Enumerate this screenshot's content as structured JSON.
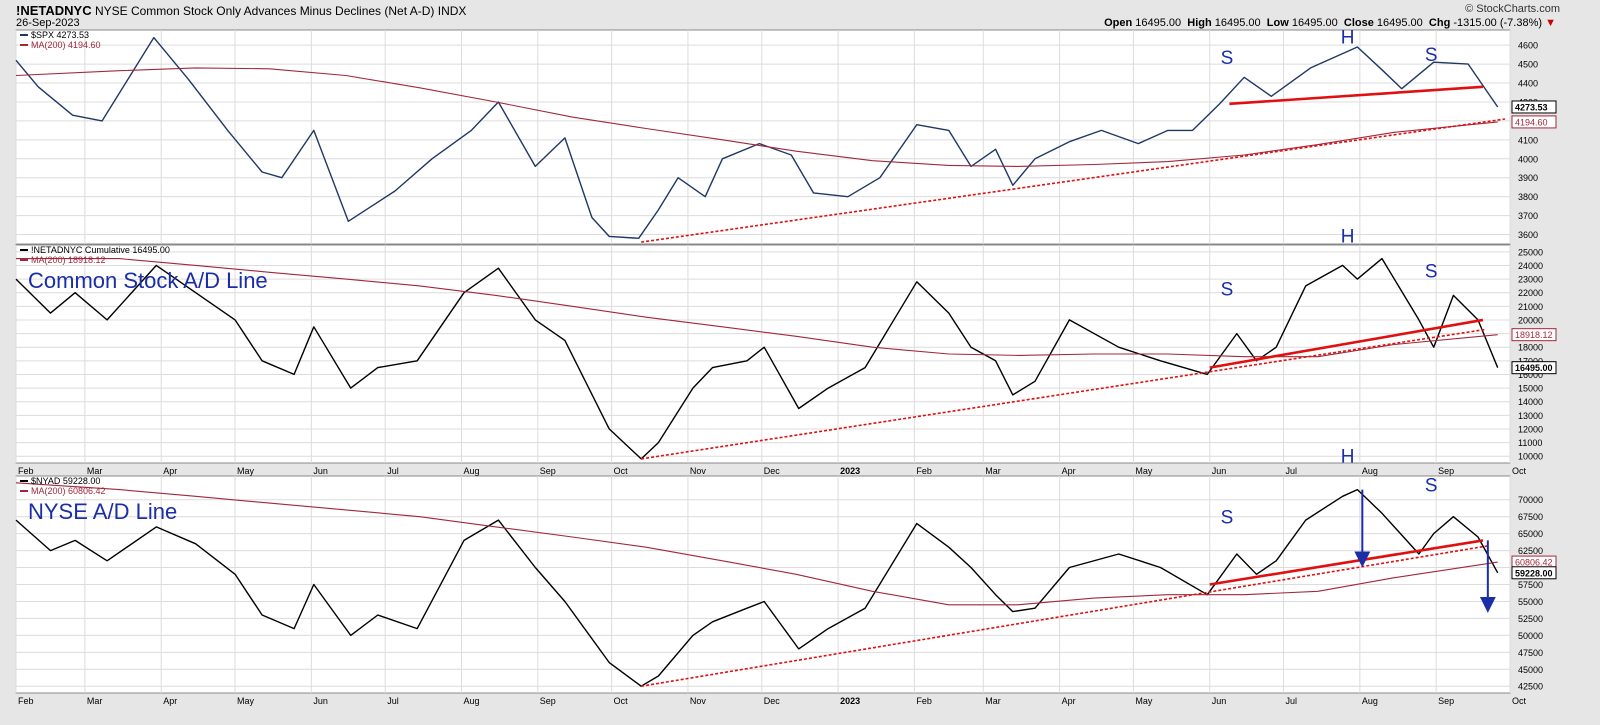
{
  "header": {
    "symbol": "!NETADNYC",
    "description": "NYSE Common Stock Only Advances Minus Declines (Net A-D)",
    "exchange": "INDX",
    "date": "26-Sep-2023",
    "site": "© StockCharts.com",
    "open_label": "Open",
    "open_value": "16495.00",
    "high_label": "High",
    "high_value": "16495.00",
    "low_label": "Low",
    "low_value": "16495.00",
    "close_label": "Close",
    "close_value": "16495.00",
    "chg_label": "Chg",
    "chg_value": "-1315.00 (-7.38%)",
    "chg_arrow": "▼"
  },
  "colors": {
    "background": "#e6e6e6",
    "plot_bg": "#ffffff",
    "grid": "#dcdcdc",
    "spx_line": "#1f3864",
    "ad_line": "#000000",
    "ma_line": "#a0283c",
    "red_trend": "#e01010",
    "annotation": "#1a2ea8"
  },
  "chart_data": [
    {
      "type": "line",
      "panel": "top",
      "legend": [
        "$SPX 4273.53",
        "MA(200) 4194.60"
      ],
      "current_labels": [
        "4273.53",
        "4194.60"
      ],
      "ylim": [
        3550,
        4680
      ],
      "yticks": [
        3600,
        3700,
        3800,
        3900,
        4000,
        4100,
        4200,
        4300,
        4400,
        4500,
        4600
      ],
      "series": [
        {
          "kind": "price",
          "x": [
            "2022-02-01",
            "2022-02-10",
            "2022-02-24",
            "2022-03-08",
            "2022-03-29",
            "2022-04-12",
            "2022-04-28",
            "2022-05-12",
            "2022-05-20",
            "2022-06-02",
            "2022-06-16",
            "2022-07-05",
            "2022-07-20",
            "2022-08-05",
            "2022-08-16",
            "2022-08-31",
            "2022-09-12",
            "2022-09-23",
            "2022-09-30",
            "2022-10-12",
            "2022-10-20",
            "2022-10-28",
            "2022-11-08",
            "2022-11-15",
            "2022-11-30",
            "2022-12-13",
            "2022-12-22",
            "2023-01-05",
            "2023-01-18",
            "2023-02-02",
            "2023-02-15",
            "2023-02-24",
            "2023-03-06",
            "2023-03-13",
            "2023-03-22",
            "2023-04-05",
            "2023-04-18",
            "2023-05-03",
            "2023-05-15",
            "2023-05-25",
            "2023-06-05",
            "2023-06-15",
            "2023-06-26",
            "2023-07-12",
            "2023-07-31",
            "2023-08-10",
            "2023-08-18",
            "2023-08-31",
            "2023-09-14",
            "2023-09-26"
          ],
          "y": [
            4520,
            4380,
            4230,
            4200,
            4640,
            4420,
            4150,
            3930,
            3900,
            4150,
            3670,
            3830,
            4000,
            4150,
            4300,
            3960,
            4110,
            3690,
            3590,
            3580,
            3730,
            3900,
            3800,
            4000,
            4080,
            4020,
            3820,
            3800,
            3900,
            4180,
            4150,
            3960,
            4050,
            3860,
            4000,
            4090,
            4150,
            4080,
            4150,
            4150,
            4290,
            4430,
            4330,
            4480,
            4590,
            4470,
            4370,
            4510,
            4500,
            4273.53
          ]
        },
        {
          "kind": "ma200",
          "x": [
            "2022-02-01",
            "2022-03-15",
            "2022-04-15",
            "2022-05-15",
            "2022-06-15",
            "2022-07-15",
            "2022-08-15",
            "2022-09-15",
            "2022-10-15",
            "2022-11-15",
            "2022-12-15",
            "2023-01-15",
            "2023-02-15",
            "2023-03-15",
            "2023-04-15",
            "2023-05-15",
            "2023-06-15",
            "2023-07-15",
            "2023-08-15",
            "2023-09-26"
          ],
          "y": [
            4440,
            4465,
            4480,
            4475,
            4440,
            4375,
            4300,
            4220,
            4160,
            4100,
            4040,
            3990,
            3965,
            3960,
            3970,
            3985,
            4020,
            4075,
            4140,
            4194.6
          ]
        }
      ],
      "annotations": [
        {
          "text": "S",
          "x": "2023-06-08",
          "y": 4500
        },
        {
          "text": "H",
          "x": "2023-07-27",
          "y": 4610
        },
        {
          "text": "S",
          "x": "2023-08-30",
          "y": 4515
        }
      ],
      "trendlines": [
        {
          "style": "solid",
          "from": [
            "2023-06-09",
            4290
          ],
          "to": [
            "2023-09-20",
            4380
          ]
        },
        {
          "style": "dotted",
          "from": [
            "2022-10-13",
            3560
          ],
          "to": [
            "2023-09-29",
            4210
          ]
        }
      ]
    },
    {
      "type": "line",
      "panel": "middle",
      "legend": [
        "!NETADNYC Cumulative 16495.00",
        "MA(200) 18918.12"
      ],
      "label": "Common Stock A/D Line",
      "current_labels": [
        "18918.12",
        "16495.00"
      ],
      "ylim": [
        9500,
        25500
      ],
      "yticks": [
        10000,
        11000,
        12000,
        13000,
        14000,
        15000,
        16000,
        17000,
        18000,
        19000,
        20000,
        21000,
        22000,
        23000,
        24000,
        25000
      ],
      "series": [
        {
          "kind": "ad",
          "x": [
            "2022-02-01",
            "2022-02-15",
            "2022-02-25",
            "2022-03-10",
            "2022-03-30",
            "2022-04-15",
            "2022-05-01",
            "2022-05-12",
            "2022-05-25",
            "2022-06-02",
            "2022-06-17",
            "2022-06-28",
            "2022-07-14",
            "2022-08-02",
            "2022-08-16",
            "2022-08-31",
            "2022-09-12",
            "2022-09-30",
            "2022-10-13",
            "2022-10-20",
            "2022-11-03",
            "2022-11-11",
            "2022-11-25",
            "2022-12-02",
            "2022-12-16",
            "2022-12-28",
            "2023-01-12",
            "2023-02-02",
            "2023-02-15",
            "2023-02-24",
            "2023-03-06",
            "2023-03-13",
            "2023-03-22",
            "2023-04-05",
            "2023-04-25",
            "2023-05-12",
            "2023-05-31",
            "2023-06-12",
            "2023-06-20",
            "2023-06-28",
            "2023-07-10",
            "2023-07-25",
            "2023-07-31",
            "2023-08-10",
            "2023-08-25",
            "2023-08-31",
            "2023-09-08",
            "2023-09-18",
            "2023-09-26"
          ],
          "y": [
            23000,
            20500,
            22000,
            20000,
            24000,
            22000,
            20000,
            17000,
            16000,
            19500,
            15000,
            16500,
            17000,
            22000,
            23800,
            20000,
            18500,
            12000,
            9800,
            11000,
            15000,
            16500,
            17000,
            18000,
            13500,
            15000,
            16500,
            22800,
            20500,
            18000,
            17000,
            14500,
            15500,
            20000,
            18000,
            17000,
            16000,
            19000,
            17000,
            18000,
            22500,
            24000,
            23000,
            24500,
            20000,
            18000,
            21800,
            20000,
            16495
          ]
        },
        {
          "kind": "ma200",
          "x": [
            "2022-02-01",
            "2022-03-15",
            "2022-04-15",
            "2022-05-15",
            "2022-06-15",
            "2022-07-15",
            "2022-08-15",
            "2022-09-15",
            "2022-10-15",
            "2022-11-15",
            "2022-12-15",
            "2023-01-15",
            "2023-02-15",
            "2023-03-15",
            "2023-04-15",
            "2023-05-15",
            "2023-06-15",
            "2023-07-15",
            "2023-08-15",
            "2023-09-26"
          ],
          "y": [
            24500,
            24500,
            24000,
            23500,
            23000,
            22500,
            21800,
            21000,
            20200,
            19500,
            18800,
            18000,
            17500,
            17400,
            17500,
            17500,
            17300,
            17300,
            18200,
            18918.12
          ]
        }
      ],
      "annotations": [
        {
          "text": "S",
          "x": "2023-06-08",
          "y": 21800
        },
        {
          "text": "H",
          "x": "2023-07-27",
          "y": 25700
        },
        {
          "text": "S",
          "x": "2023-08-30",
          "y": 23100
        }
      ],
      "trendlines": [
        {
          "style": "solid",
          "from": [
            "2023-06-01",
            16500
          ],
          "to": [
            "2023-09-20",
            20000
          ]
        },
        {
          "style": "dotted",
          "from": [
            "2022-10-13",
            9800
          ],
          "to": [
            "2023-09-21",
            19300
          ]
        }
      ]
    },
    {
      "type": "line",
      "panel": "bottom",
      "legend": [
        "$NYAD 59228.00",
        "MA(200) 60806.42"
      ],
      "label": "NYSE A/D Line",
      "current_labels": [
        "60806.42",
        "59228.00"
      ],
      "ylim": [
        41500,
        73500
      ],
      "yticks": [
        42500,
        45000,
        47500,
        50000,
        52500,
        55000,
        57500,
        60000,
        62500,
        65000,
        67500,
        70000
      ],
      "series": [
        {
          "kind": "ad",
          "x": [
            "2022-02-01",
            "2022-02-15",
            "2022-02-25",
            "2022-03-10",
            "2022-03-30",
            "2022-04-15",
            "2022-05-01",
            "2022-05-12",
            "2022-05-25",
            "2022-06-02",
            "2022-06-17",
            "2022-06-28",
            "2022-07-14",
            "2022-08-02",
            "2022-08-16",
            "2022-08-31",
            "2022-09-12",
            "2022-09-30",
            "2022-10-13",
            "2022-10-20",
            "2022-11-03",
            "2022-11-11",
            "2022-11-25",
            "2022-12-02",
            "2022-12-16",
            "2022-12-28",
            "2023-01-12",
            "2023-02-02",
            "2023-02-15",
            "2023-02-24",
            "2023-03-06",
            "2023-03-13",
            "2023-03-22",
            "2023-04-05",
            "2023-04-25",
            "2023-05-12",
            "2023-05-31",
            "2023-06-12",
            "2023-06-20",
            "2023-06-28",
            "2023-07-10",
            "2023-07-25",
            "2023-07-31",
            "2023-08-10",
            "2023-08-25",
            "2023-08-31",
            "2023-09-08",
            "2023-09-18",
            "2023-09-26"
          ],
          "y": [
            67000,
            62500,
            64000,
            61000,
            66000,
            63500,
            59000,
            53000,
            51000,
            57500,
            50000,
            53000,
            51000,
            64000,
            67000,
            60000,
            55000,
            46000,
            42500,
            44000,
            50000,
            52000,
            54000,
            55000,
            48000,
            51000,
            54000,
            66500,
            63000,
            60000,
            56000,
            53500,
            54000,
            60000,
            62000,
            60000,
            56000,
            62000,
            59000,
            61000,
            67000,
            70500,
            71500,
            68000,
            62000,
            65000,
            67500,
            64500,
            59228
          ]
        },
        {
          "kind": "ma200",
          "x": [
            "2022-02-01",
            "2022-03-15",
            "2022-04-15",
            "2022-05-15",
            "2022-06-15",
            "2022-07-15",
            "2022-08-15",
            "2022-09-15",
            "2022-10-15",
            "2022-11-15",
            "2022-12-15",
            "2023-01-15",
            "2023-02-15",
            "2023-03-15",
            "2023-04-15",
            "2023-05-15",
            "2023-06-15",
            "2023-07-15",
            "2023-08-15",
            "2023-09-26"
          ],
          "y": [
            72500,
            71500,
            70500,
            69500,
            68500,
            67500,
            66000,
            64500,
            63000,
            61000,
            59000,
            56500,
            54500,
            54500,
            55500,
            56000,
            56000,
            56500,
            58500,
            60806.42
          ]
        }
      ],
      "annotations": [
        {
          "text": "S",
          "x": "2023-06-08",
          "y": 66500
        },
        {
          "text": "H",
          "x": "2023-07-27",
          "y": 75500
        },
        {
          "text": "S",
          "x": "2023-08-30",
          "y": 71200
        }
      ],
      "trendlines": [
        {
          "style": "solid",
          "from": [
            "2023-06-01",
            57500
          ],
          "to": [
            "2023-09-20",
            64000
          ]
        },
        {
          "style": "dotted",
          "from": [
            "2022-10-13",
            42500
          ],
          "to": [
            "2023-09-22",
            63200
          ]
        }
      ],
      "arrows": [
        {
          "from": [
            "2023-08-02",
            71500
          ],
          "to": [
            "2023-08-02",
            61200
          ]
        },
        {
          "from": [
            "2023-09-22",
            64000
          ],
          "to": [
            "2023-09-22",
            54500
          ]
        }
      ]
    }
  ],
  "x_axis": {
    "ticks": [
      {
        "label": "Feb",
        "date": "2022-02-01"
      },
      {
        "label": "Mar",
        "date": "2022-03-01"
      },
      {
        "label": "Apr",
        "date": "2022-04-01"
      },
      {
        "label": "May",
        "date": "2022-05-01"
      },
      {
        "label": "Jun",
        "date": "2022-06-01"
      },
      {
        "label": "Jul",
        "date": "2022-07-01"
      },
      {
        "label": "Aug",
        "date": "2022-08-01"
      },
      {
        "label": "Sep",
        "date": "2022-09-01"
      },
      {
        "label": "Oct",
        "date": "2022-10-01"
      },
      {
        "label": "Nov",
        "date": "2022-11-01"
      },
      {
        "label": "Dec",
        "date": "2022-12-01"
      },
      {
        "label": "2023",
        "date": "2023-01-01",
        "bold": true
      },
      {
        "label": "Feb",
        "date": "2023-02-01"
      },
      {
        "label": "Mar",
        "date": "2023-03-01"
      },
      {
        "label": "Apr",
        "date": "2023-04-01"
      },
      {
        "label": "May",
        "date": "2023-05-01"
      },
      {
        "label": "Jun",
        "date": "2023-06-01"
      },
      {
        "label": "Jul",
        "date": "2023-07-01"
      },
      {
        "label": "Aug",
        "date": "2023-08-01"
      },
      {
        "label": "Sep",
        "date": "2023-09-01"
      },
      {
        "label": "Oct",
        "date": "2023-10-01"
      }
    ]
  }
}
